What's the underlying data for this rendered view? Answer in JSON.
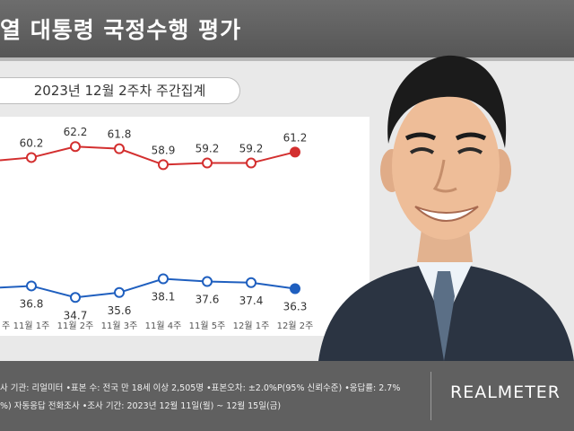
{
  "header": {
    "title": "열 대통령 국정수행 평가"
  },
  "subtitle": "2023년 12월 2주차 주간집계",
  "chart_data": {
    "type": "line",
    "categories": [
      "주",
      "11월 1주",
      "11월 2주",
      "11월 3주",
      "11월 4주",
      "11월 5주",
      "12월 1주",
      "12월 2주"
    ],
    "series": [
      {
        "values": [
          null,
          60.2,
          62.2,
          61.8,
          58.9,
          59.2,
          59.2,
          61.2
        ],
        "color": "#d32f2f"
      },
      {
        "values": [
          null,
          36.8,
          34.7,
          35.6,
          38.1,
          37.6,
          37.4,
          36.3
        ],
        "color": "#1f5fbf"
      }
    ],
    "partial_left": [
      {
        "series": 0,
        "value": 59.7
      },
      {
        "series": 1,
        "value": 36.5
      }
    ],
    "ylim": [
      30,
      66
    ],
    "grid": false,
    "legend": "none"
  },
  "footer": {
    "line1": "사 기관: 리얼미터 •표본 수: 전국 만 18세 이상 2,505명 •표본오차: ±2.0%P(95% 신뢰수준) •응답률: 2.7%",
    "line2": "%) 자동응답 전화조사 •조사 기간: 2023년 12월 11일(월) ~ 12월 15일(금)"
  },
  "logo": "REALMETER",
  "colors": {
    "approve": "#d32f2f",
    "disapprove": "#1f5fbf"
  },
  "photo": {
    "icon": "person-portrait-icon"
  }
}
